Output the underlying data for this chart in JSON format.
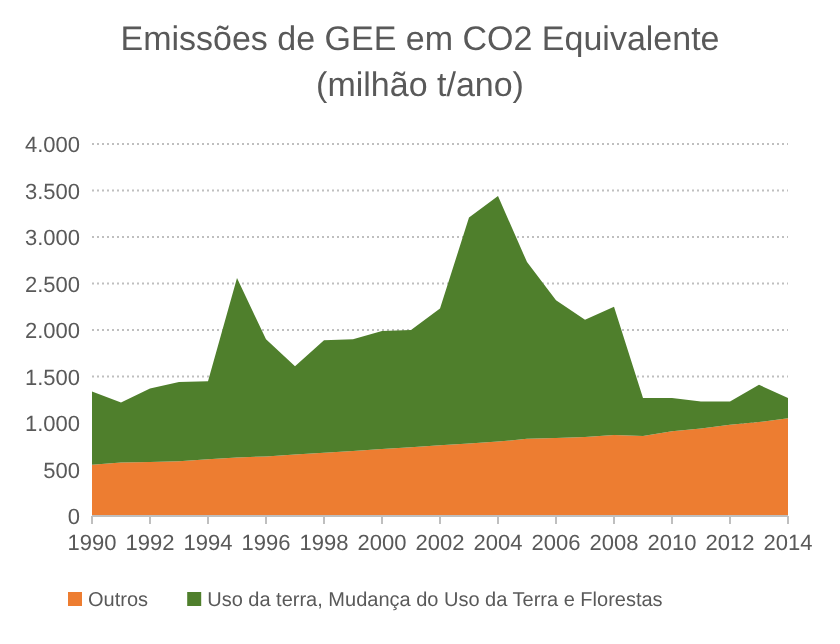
{
  "chart_data": {
    "type": "area",
    "title": "Emissões de GEE em CO2 Equivalente",
    "subtitle": "(milhão t/ano)",
    "stacked": true,
    "x": [
      1990,
      1991,
      1992,
      1993,
      1994,
      1995,
      1996,
      1997,
      1998,
      1999,
      2000,
      2001,
      2002,
      2003,
      2004,
      2005,
      2006,
      2007,
      2008,
      2009,
      2010,
      2011,
      2012,
      2013,
      2014
    ],
    "series": [
      {
        "name": "Outros",
        "color": "#ed7d31",
        "values": [
          550,
          575,
          580,
          590,
          610,
          630,
          640,
          660,
          680,
          700,
          720,
          740,
          760,
          780,
          800,
          830,
          840,
          850,
          870,
          860,
          910,
          940,
          980,
          1010,
          1050
        ]
      },
      {
        "name": "Uso da terra, Mudança do Uso da Terra e Florestas",
        "color": "#4f7f2c",
        "values": [
          790,
          645,
          790,
          850,
          840,
          1930,
          1260,
          950,
          1210,
          1200,
          1270,
          1260,
          1470,
          2430,
          2640,
          1900,
          1480,
          1260,
          1380,
          410,
          360,
          290,
          250,
          400,
          220
        ]
      }
    ],
    "xlim": [
      1990,
      2014
    ],
    "xticks": [
      1990,
      1992,
      1994,
      1996,
      1998,
      2000,
      2002,
      2004,
      2006,
      2008,
      2010,
      2012,
      2014
    ],
    "ylim": [
      0,
      4000
    ],
    "yticks": [
      {
        "value": 0,
        "label": "0"
      },
      {
        "value": 500,
        "label": "500"
      },
      {
        "value": 1000,
        "label": "1.000"
      },
      {
        "value": 1500,
        "label": "1.500"
      },
      {
        "value": 2000,
        "label": "2.000"
      },
      {
        "value": 2500,
        "label": "2.500"
      },
      {
        "value": 3000,
        "label": "3.000"
      },
      {
        "value": 3500,
        "label": "3.500"
      },
      {
        "value": 4000,
        "label": "4.000"
      }
    ],
    "grid": "y",
    "legend": "bottom"
  }
}
